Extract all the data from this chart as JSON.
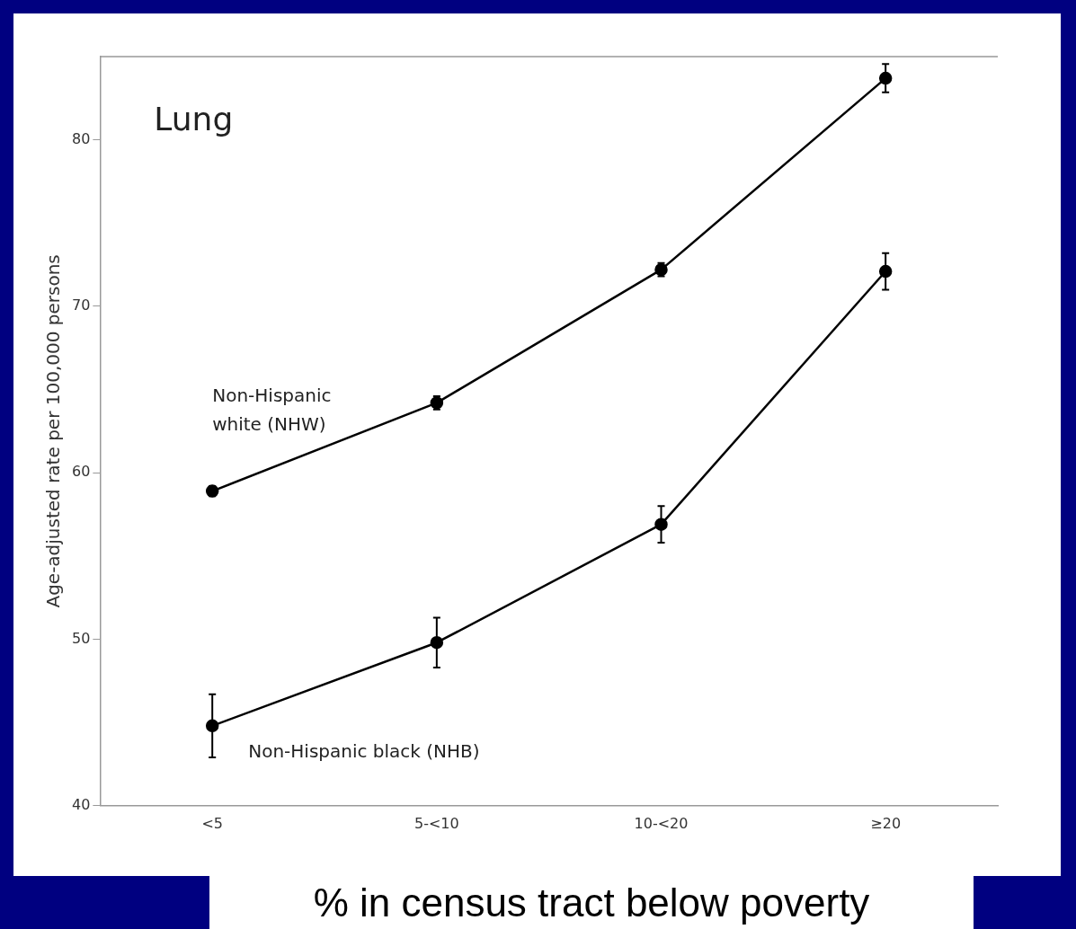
{
  "chart_data": {
    "type": "line",
    "title": "Lung",
    "xlabel": "% in census tract below poverty",
    "ylabel": "Age-adjusted rate per 100,000 persons",
    "categories": [
      "<5",
      "5-<10",
      "10-<20",
      "≥20"
    ],
    "series": [
      {
        "name": "Non-Hispanic white (NHW)",
        "color": "#000000",
        "values": [
          58.9,
          64.2,
          72.2,
          83.7
        ],
        "errors": [
          0.3,
          0.4,
          0.4,
          0.85
        ]
      },
      {
        "name": "Non-Hispanic black (NHB)",
        "color": "#000000",
        "values": [
          44.8,
          49.8,
          56.9,
          72.1
        ],
        "errors": [
          1.9,
          1.5,
          1.1,
          1.1
        ]
      }
    ],
    "ylim": [
      40,
      85
    ],
    "yticks": [
      40,
      50,
      60,
      70,
      80
    ],
    "grid": false,
    "legend": false,
    "marker": "circle",
    "line_style": "solid"
  }
}
